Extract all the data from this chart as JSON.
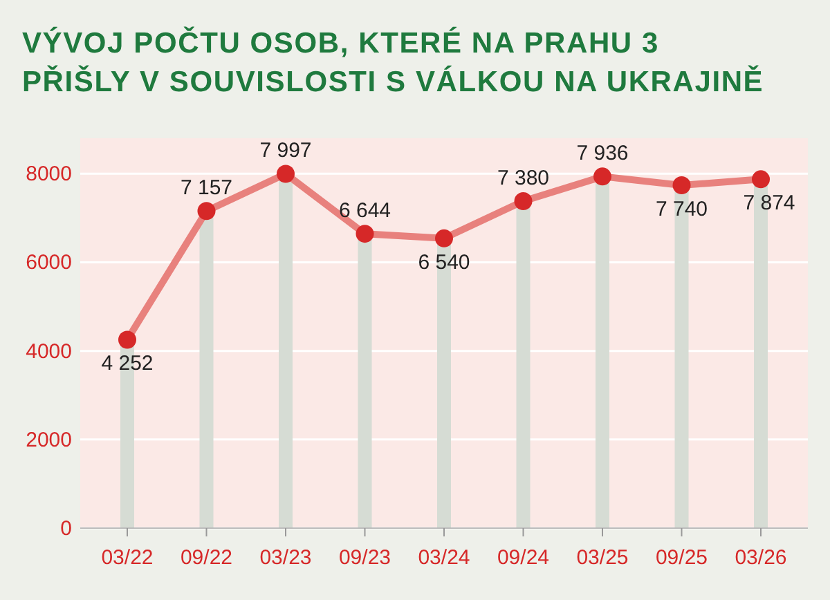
{
  "chart_data": {
    "type": "line",
    "title": "VÝVOJ POČTU OSOB, KTERÉ NA PRAHU 3\nPŘIŠLY V SOUVISLOSTI S VÁLKOU NA UKRAJINĚ",
    "categories": [
      "03/22",
      "09/22",
      "03/23",
      "09/23",
      "03/24",
      "09/24",
      "03/25",
      "09/25",
      "03/26"
    ],
    "series": [
      {
        "color": "#e8817d",
        "values": [
          4252,
          7157,
          7997,
          6644,
          6540,
          7380,
          7936,
          7740,
          7874
        ],
        "value_labels": [
          "4 252",
          "7 157",
          "7 997",
          "6 644",
          "6 540",
          "7 380",
          "7 936",
          "7 740",
          "7 874"
        ]
      }
    ],
    "marker": "circle",
    "ylim": [
      0,
      8800
    ],
    "yticks": [
      {
        "value": 0,
        "label": "0"
      },
      {
        "value": 2000,
        "label": "2000"
      },
      {
        "value": 4000,
        "label": "4000"
      },
      {
        "value": 6000,
        "label": "6000"
      },
      {
        "value": 8000,
        "label": "8000"
      }
    ],
    "grid": true
  }
}
